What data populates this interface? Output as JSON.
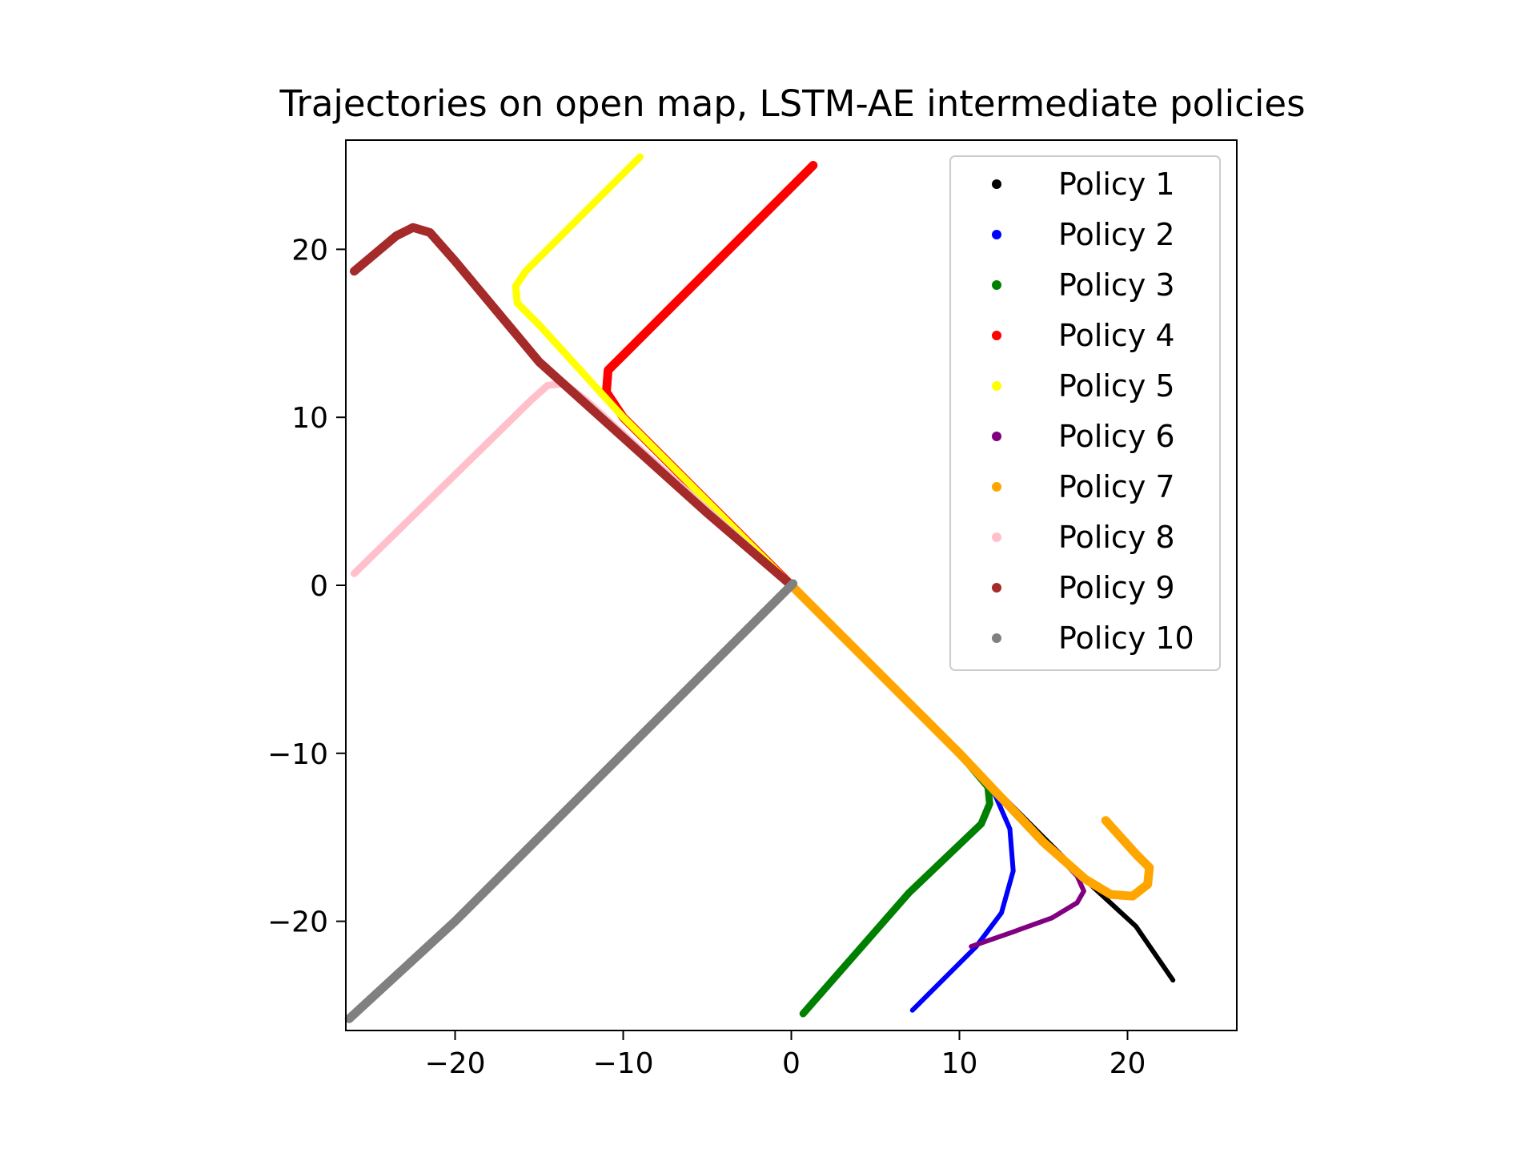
{
  "chart_data": {
    "type": "scatter",
    "title": "Trajectories on open map, LSTM-AE intermediate policies",
    "xlabel": "",
    "ylabel": "",
    "xlim": [
      -26.5,
      26.5
    ],
    "ylim": [
      -26.5,
      26.5
    ],
    "xticks": [
      -20,
      -10,
      0,
      10,
      20
    ],
    "yticks": [
      -20,
      -10,
      0,
      10,
      20
    ],
    "xtick_labels": [
      "−20",
      "−10",
      "0",
      "10",
      "20"
    ],
    "ytick_labels": [
      "−20",
      "−10",
      "0",
      "10",
      "20"
    ],
    "grid": false,
    "legend_position": "top-right",
    "series": [
      {
        "name": "Policy 1",
        "color": "#000000",
        "points": [
          [
            0,
            0
          ],
          [
            5,
            -5
          ],
          [
            10,
            -10
          ],
          [
            15,
            -15
          ],
          [
            18,
            -18
          ],
          [
            20.5,
            -20.3
          ],
          [
            22.7,
            -23.5
          ]
        ]
      },
      {
        "name": "Policy 2",
        "color": "#0000ff",
        "points": [
          [
            0,
            0
          ],
          [
            5,
            -5
          ],
          [
            10,
            -10
          ],
          [
            12,
            -12.2
          ],
          [
            13,
            -14.5
          ],
          [
            13.2,
            -17
          ],
          [
            12.5,
            -19.5
          ],
          [
            11,
            -21.5
          ],
          [
            7.2,
            -25.3
          ]
        ]
      },
      {
        "name": "Policy 3",
        "color": "#008000",
        "points": [
          [
            0,
            0
          ],
          [
            5,
            -5
          ],
          [
            10,
            -10
          ],
          [
            11.7,
            -12
          ],
          [
            11.8,
            -13
          ],
          [
            11.3,
            -14.2
          ],
          [
            7,
            -18.3
          ],
          [
            0.7,
            -25.5
          ]
        ]
      },
      {
        "name": "Policy 4",
        "color": "#ff0000",
        "points": [
          [
            0,
            0
          ],
          [
            -5,
            5
          ],
          [
            -10,
            10
          ],
          [
            -11,
            11.5
          ],
          [
            -10.9,
            12.8
          ],
          [
            -10,
            13.7
          ],
          [
            1.3,
            25
          ]
        ]
      },
      {
        "name": "Policy 5",
        "color": "#ffff00",
        "points": [
          [
            0,
            0
          ],
          [
            -5,
            5
          ],
          [
            -10,
            10
          ],
          [
            -15,
            15.5
          ],
          [
            -16.3,
            16.8
          ],
          [
            -16.4,
            17.8
          ],
          [
            -15.8,
            18.7
          ],
          [
            -9,
            25.5
          ]
        ]
      },
      {
        "name": "Policy 6",
        "color": "#800080",
        "points": [
          [
            0,
            0
          ],
          [
            5,
            -5
          ],
          [
            10,
            -10
          ],
          [
            15,
            -15.2
          ],
          [
            17,
            -17.3
          ],
          [
            17.4,
            -18.2
          ],
          [
            17,
            -18.9
          ],
          [
            15.5,
            -19.8
          ],
          [
            13,
            -20.7
          ],
          [
            10.7,
            -21.5
          ]
        ]
      },
      {
        "name": "Policy 7",
        "color": "#ffa500",
        "points": [
          [
            0,
            0
          ],
          [
            5,
            -5
          ],
          [
            10,
            -10
          ],
          [
            15,
            -15.3
          ],
          [
            17.5,
            -17.5
          ],
          [
            19,
            -18.4
          ],
          [
            20.3,
            -18.5
          ],
          [
            21.2,
            -17.8
          ],
          [
            21.3,
            -16.8
          ],
          [
            20.5,
            -16
          ],
          [
            18.7,
            -14
          ]
        ]
      },
      {
        "name": "Policy 8",
        "color": "#ffc0cb",
        "points": [
          [
            0,
            0
          ],
          [
            -5,
            4.5
          ],
          [
            -10,
            9
          ],
          [
            -12.2,
            11
          ],
          [
            -13.5,
            12
          ],
          [
            -14.5,
            11.9
          ],
          [
            -15.5,
            11
          ],
          [
            -26,
            0.7
          ]
        ]
      },
      {
        "name": "Policy 9",
        "color": "#a52a2a",
        "points": [
          [
            0,
            0
          ],
          [
            -5,
            4.3
          ],
          [
            -10,
            8.8
          ],
          [
            -15,
            13.3
          ],
          [
            -20,
            19.3
          ],
          [
            -21.5,
            21
          ],
          [
            -22.5,
            21.3
          ],
          [
            -23.5,
            20.8
          ],
          [
            -26,
            18.7
          ]
        ]
      },
      {
        "name": "Policy 10",
        "color": "#808080",
        "points": [
          [
            0.1,
            0.1
          ],
          [
            -5,
            -5
          ],
          [
            -10,
            -10
          ],
          [
            -15,
            -15
          ],
          [
            -20,
            -20
          ],
          [
            -26.3,
            -25.8
          ]
        ]
      }
    ]
  }
}
